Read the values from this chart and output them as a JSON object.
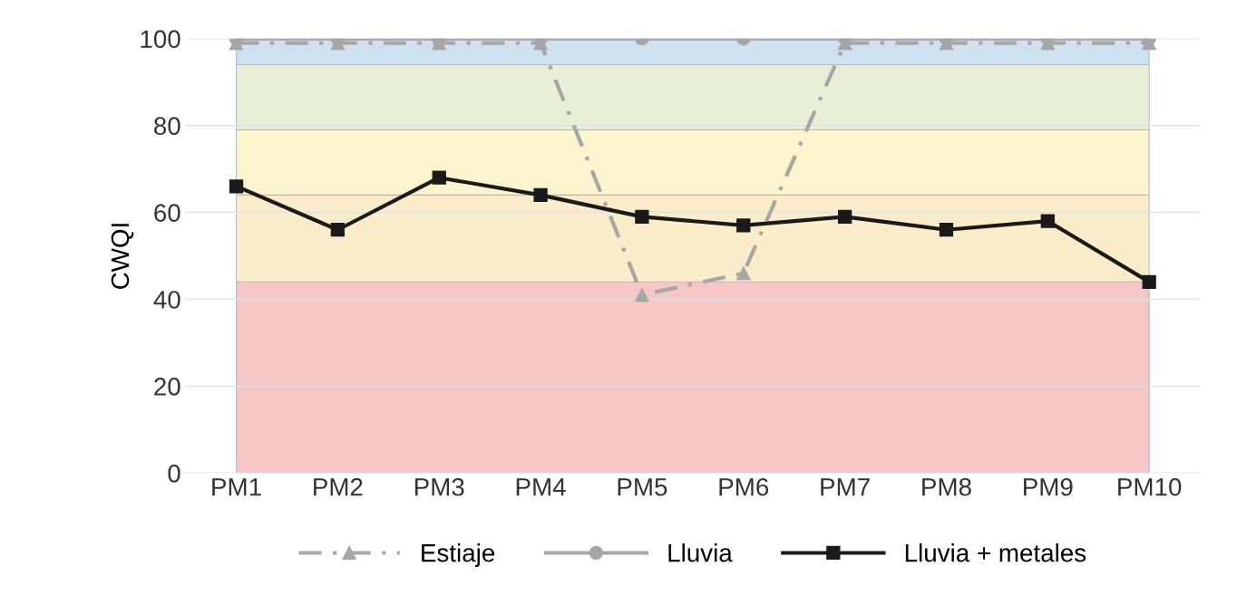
{
  "chart_data": {
    "type": "line",
    "ylabel": "CWQI",
    "categories": [
      "PM1",
      "PM2",
      "PM3",
      "PM4",
      "PM5",
      "PM6",
      "PM7",
      "PM8",
      "PM9",
      "PM10"
    ],
    "series": [
      {
        "name": "Estiaje",
        "color": "#a6a6a6",
        "marker": "triangle",
        "line_style": "dashed",
        "values": [
          99,
          99,
          99,
          99,
          41,
          46,
          99,
          99,
          99,
          99
        ]
      },
      {
        "name": "Lluvia",
        "color": "#a6a6a6",
        "marker": "circle",
        "line_style": "solid",
        "values": [
          100,
          100,
          100,
          100,
          100,
          100,
          100,
          100,
          100,
          100
        ]
      },
      {
        "name": "Lluvia + metales",
        "color": "#1a1a1a",
        "marker": "square",
        "line_style": "solid",
        "values": [
          66,
          56,
          68,
          64,
          59,
          57,
          59,
          56,
          58,
          44
        ]
      }
    ],
    "bands": [
      {
        "axis": "y",
        "from": 0,
        "to": 44,
        "color": "#f7c6c6"
      },
      {
        "axis": "y",
        "from": 44,
        "to": 64,
        "color": "#fbedc9"
      },
      {
        "axis": "y",
        "from": 64,
        "to": 79,
        "color": "#faf5cc"
      },
      {
        "axis": "y",
        "from": 79,
        "to": 94,
        "color": "#e8f1d8"
      },
      {
        "axis": "y",
        "from": 94,
        "to": 100,
        "color": "#cde1f1"
      }
    ],
    "ylim": [
      0,
      100
    ],
    "yticks": [
      0,
      20,
      40,
      60,
      80,
      100
    ],
    "grid": "y",
    "legend": "bottom"
  }
}
